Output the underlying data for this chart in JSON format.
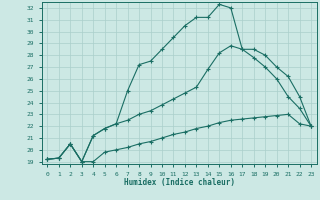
{
  "xlabel": "Humidex (Indice chaleur)",
  "background_color": "#cce8e4",
  "grid_color": "#aacfcb",
  "line_color": "#1a6e64",
  "xlim": [
    -0.5,
    23.5
  ],
  "ylim": [
    18.8,
    32.5
  ],
  "xticks": [
    0,
    1,
    2,
    3,
    4,
    5,
    6,
    7,
    8,
    9,
    10,
    11,
    12,
    13,
    14,
    15,
    16,
    17,
    18,
    19,
    20,
    21,
    22,
    23
  ],
  "yticks": [
    19,
    20,
    21,
    22,
    23,
    24,
    25,
    26,
    27,
    28,
    29,
    30,
    31,
    32
  ],
  "line1_x": [
    0,
    1,
    2,
    3,
    4,
    5,
    6,
    7,
    8,
    9,
    10,
    11,
    12,
    13,
    14,
    15,
    16,
    17,
    18,
    19,
    20,
    21,
    22,
    23
  ],
  "line1_y": [
    19.2,
    19.3,
    20.5,
    19.0,
    19.0,
    19.8,
    20.0,
    20.2,
    20.5,
    20.7,
    21.0,
    21.3,
    21.5,
    21.8,
    22.0,
    22.3,
    22.5,
    22.6,
    22.7,
    22.8,
    22.9,
    23.0,
    22.2,
    22.0
  ],
  "line2_x": [
    0,
    1,
    2,
    3,
    4,
    5,
    6,
    7,
    8,
    9,
    10,
    11,
    12,
    13,
    14,
    15,
    16,
    17,
    18,
    19,
    20,
    21,
    22,
    23
  ],
  "line2_y": [
    19.2,
    19.3,
    20.5,
    19.0,
    21.2,
    21.8,
    22.2,
    25.0,
    27.2,
    27.5,
    28.5,
    29.5,
    30.5,
    31.2,
    31.2,
    32.3,
    32.0,
    28.5,
    28.5,
    28.0,
    27.0,
    26.2,
    24.5,
    22.0
  ],
  "line3_x": [
    0,
    1,
    2,
    3,
    4,
    5,
    6,
    7,
    8,
    9,
    10,
    11,
    12,
    13,
    14,
    15,
    16,
    17,
    18,
    19,
    20,
    21,
    22,
    23
  ],
  "line3_y": [
    19.2,
    19.3,
    20.5,
    19.0,
    21.2,
    21.8,
    22.2,
    22.5,
    23.0,
    23.3,
    23.8,
    24.3,
    24.8,
    25.3,
    26.8,
    28.2,
    28.8,
    28.5,
    27.8,
    27.0,
    26.0,
    24.5,
    23.5,
    22.0
  ]
}
